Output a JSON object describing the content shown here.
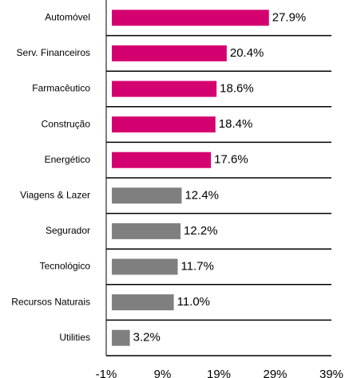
{
  "chart_data": {
    "type": "bar",
    "orientation": "horizontal",
    "categories": [
      "Automóvel",
      "Serv. Financeiros",
      "Farmacêutico",
      "Construção",
      "Energético",
      "Viagens & Lazer",
      "Segurador",
      "Tecnológico",
      "Recursos Naturais",
      "Utilities"
    ],
    "values": [
      27.9,
      20.4,
      18.6,
      18.4,
      17.6,
      12.4,
      12.2,
      11.7,
      11.0,
      3.2
    ],
    "value_labels": [
      "27.9%",
      "20.4%",
      "18.6%",
      "18.4%",
      "17.6%",
      "12.4%",
      "12.2%",
      "11.7%",
      "11.0%",
      "3.2%"
    ],
    "colors": [
      "#d4006f",
      "#d4006f",
      "#d4006f",
      "#d4006f",
      "#d4006f",
      "#7f7f7f",
      "#7f7f7f",
      "#7f7f7f",
      "#7f7f7f",
      "#7f7f7f"
    ],
    "xlim": [
      -1,
      39
    ],
    "xticks": [
      {
        "value": -1,
        "label": "-1%"
      },
      {
        "value": 9,
        "label": "9%"
      },
      {
        "value": 19,
        "label": "19%"
      },
      {
        "value": 29,
        "label": "29%"
      },
      {
        "value": 39,
        "label": "39%"
      }
    ]
  }
}
